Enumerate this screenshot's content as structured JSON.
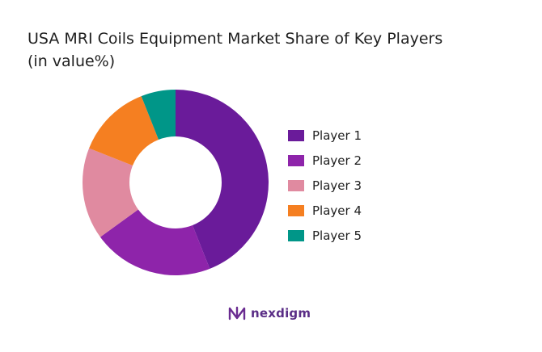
{
  "chart_data": {
    "type": "pie",
    "donut": true,
    "title_lines": [
      "USA MRI Coils Equipment Market Share of Key Players",
      "(in value%)"
    ],
    "categories": [
      "Player 1",
      "Player 2",
      "Player 3",
      "Player 4",
      "Player 5"
    ],
    "values": [
      44,
      21,
      16,
      13,
      6
    ],
    "colors": [
      "#6a1b9a",
      "#8e24aa",
      "#e08aa0",
      "#f57f21",
      "#009688"
    ],
    "legend_position": "right"
  },
  "brand": {
    "name": "nexdigm",
    "color": "#5a2d86"
  }
}
